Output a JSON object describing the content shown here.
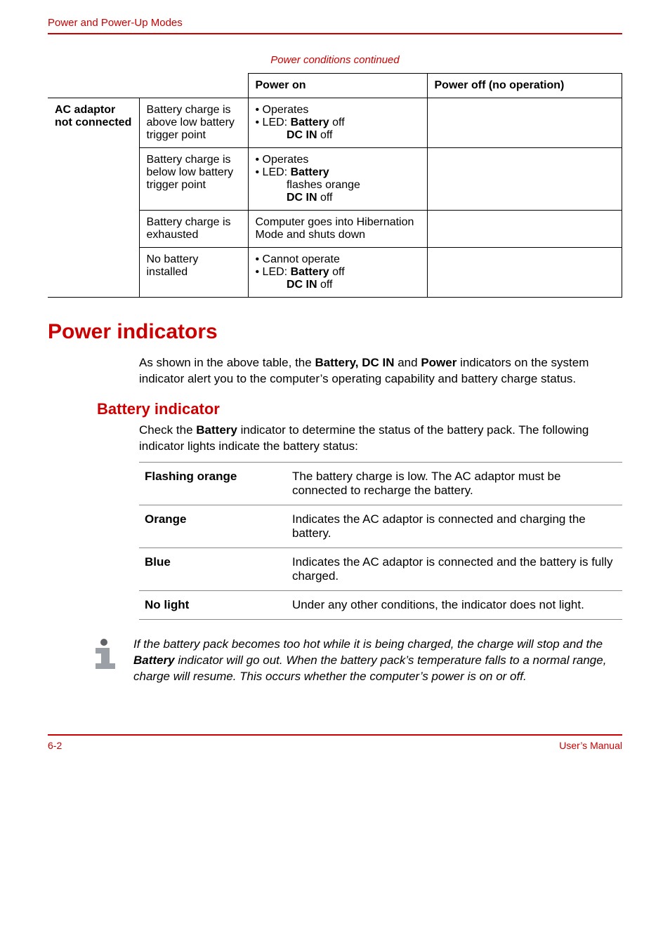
{
  "colors": {
    "accent": "#cc0000",
    "text": "#000000",
    "rule": "#888888",
    "background": "#ffffff",
    "icon_fill": "#9aa0a6",
    "icon_dot": "#5f6368"
  },
  "running_head": "Power and Power-Up Modes",
  "table_caption": "Power conditions continued",
  "power_table": {
    "headers": {
      "c3": "Power on",
      "c4": "Power off (no operation)"
    },
    "rowgroup_label": "AC adaptor not connected",
    "rows": [
      {
        "cond": "Battery charge is above low battery trigger point",
        "on_lines": [
          "• Operates",
          "• LED: <b>Battery</b> off",
          "&nbsp;&nbsp;&nbsp;&nbsp;&nbsp;&nbsp;&nbsp;&nbsp;&nbsp;&nbsp;<b>DC IN</b> off"
        ],
        "off_lines": []
      },
      {
        "cond": "Battery charge is below low battery trigger point",
        "on_lines": [
          "• Operates",
          "• LED: <b>Battery</b>",
          "&nbsp;&nbsp;&nbsp;&nbsp;&nbsp;&nbsp;&nbsp;&nbsp;&nbsp;&nbsp;flashes orange",
          "&nbsp;&nbsp;&nbsp;&nbsp;&nbsp;&nbsp;&nbsp;&nbsp;&nbsp;&nbsp;<b>DC IN</b> off"
        ],
        "off_lines": []
      },
      {
        "cond": "Battery charge is exhausted",
        "on_lines": [
          "Computer goes into Hibernation Mode and shuts down"
        ],
        "off_lines": []
      },
      {
        "cond": "No battery installed",
        "on_lines": [
          "• Cannot operate",
          "• LED: <b>Battery</b> off",
          "&nbsp;&nbsp;&nbsp;&nbsp;&nbsp;&nbsp;&nbsp;&nbsp;&nbsp;&nbsp;<b>DC IN</b> off"
        ],
        "off_lines": []
      }
    ]
  },
  "section_title": "Power indicators",
  "section_intro": "As shown in the above table, the <b>Battery, DC IN</b> and <b>Power</b> indicators on the system indicator alert you to the computer’s operating capability and battery charge status.",
  "subsection_title": "Battery indicator",
  "subsection_intro": "Check the <b>Battery</b> indicator to determine the status of the battery pack. The following indicator lights indicate the battery status:",
  "indicator_table": [
    {
      "label": "Flashing orange",
      "desc": "The battery charge is low. The AC adaptor must be connected to recharge the battery."
    },
    {
      "label": "Orange",
      "desc": "Indicates the AC adaptor is connected and charging the battery."
    },
    {
      "label": "Blue",
      "desc": "Indicates the AC adaptor is connected and the battery is fully charged."
    },
    {
      "label": "No light",
      "desc": "Under any other conditions, the indicator does not light."
    }
  ],
  "note_text": "If the battery pack becomes too hot while it is being charged, the charge will stop and the <b>Battery</b> indicator will go out. When the battery pack’s temperature falls to a normal range, charge will resume. This occurs whether the computer’s power is on or off.",
  "footer": {
    "left": "6-2",
    "right": "User’s Manual"
  }
}
